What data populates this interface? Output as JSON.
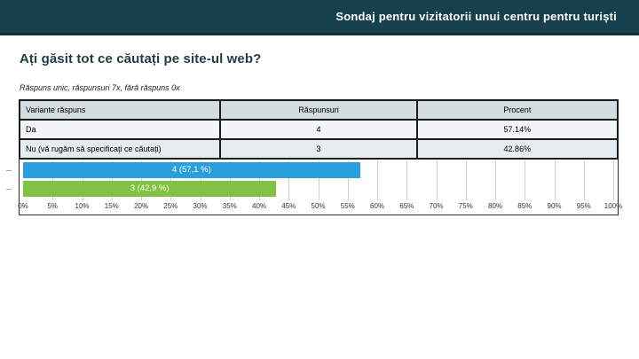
{
  "header": {
    "title": "Sondaj pentru vizitatorii unui centru pentru turiști"
  },
  "question": {
    "title": "Ați găsit tot ce căutați pe site-ul web?",
    "meta": "Răspuns unic, răspunsuri 7x, fără răspuns 0x"
  },
  "table": {
    "columns": [
      "Variante răspuns",
      "Răspunsuri",
      "Procent"
    ],
    "rows": [
      {
        "variant": "Da",
        "answers": "4",
        "percent": "57.14%"
      },
      {
        "variant": "Nu (vă rugăm să specificați ce căutați)",
        "answers": "3",
        "percent": "42.86%"
      }
    ]
  },
  "chart_data": {
    "type": "bar",
    "orientation": "horizontal",
    "title": "",
    "xlabel": "",
    "ylabel": "",
    "xlim": [
      0,
      100
    ],
    "grid": true,
    "categories": [
      "Da",
      "Nu (vă rugăm să specificați ce căutați)"
    ],
    "counts": [
      4,
      3
    ],
    "values": [
      57.1,
      42.9
    ],
    "bar_labels": [
      "4 (57,1 %)",
      "3 (42,9 %)"
    ],
    "bar_colors": [
      "#2b9fd9",
      "#82c243"
    ],
    "x_ticks": [
      "0%",
      "5%",
      "10%",
      "15%",
      "20%",
      "25%",
      "30%",
      "35%",
      "40%",
      "45%",
      "50%",
      "55%",
      "60%",
      "65%",
      "70%",
      "75%",
      "80%",
      "85%",
      "90%",
      "95%",
      "100%"
    ]
  },
  "colors": {
    "header_bg": "#16414c",
    "accent_blue": "#2b9fd9",
    "accent_green": "#82c243",
    "table_header_bg": "#d3dcdf",
    "border": "#1b1b1b"
  }
}
